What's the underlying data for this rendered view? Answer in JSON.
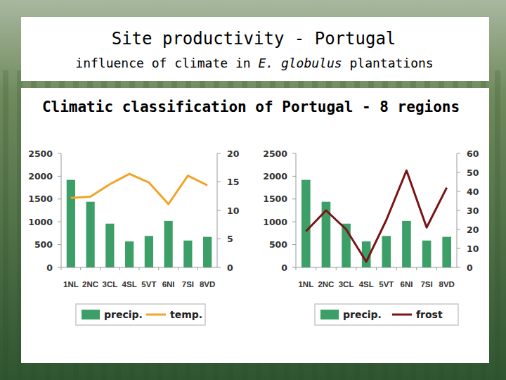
{
  "title": "Site productivity - Portugal",
  "subtitle": "influence of climate in E. globulus plantations",
  "subtitle_italic": "E. globulus",
  "heading": "Climatic classification of Portugal - 8 regions",
  "chart_data": [
    {
      "type": "bar",
      "categories": [
        "1NL",
        "2NC",
        "3CL",
        "4SL",
        "5VT",
        "6NI",
        "7SI",
        "8VD"
      ],
      "series": [
        {
          "name": "precip.",
          "type": "bar",
          "color": "#3c9f68",
          "values": [
            1920,
            1440,
            960,
            570,
            690,
            1020,
            590,
            670
          ]
        },
        {
          "name": "temp.",
          "type": "line",
          "axis": "y2",
          "color": "#f0a428",
          "values": [
            12.2,
            12.4,
            14.6,
            16.4,
            14.9,
            11.1,
            16.1,
            14.4
          ]
        }
      ],
      "ylim": [
        0,
        2500
      ],
      "yticks": [
        0,
        500,
        1000,
        1500,
        2000,
        2500
      ],
      "y2lim": [
        0,
        20
      ],
      "y2ticks": [
        0,
        5,
        10,
        15,
        20
      ],
      "grid": false,
      "legend": "bottom"
    },
    {
      "type": "bar",
      "categories": [
        "1NL",
        "2NC",
        "3CL",
        "4SL",
        "5VT",
        "6NI",
        "7SI",
        "8VD"
      ],
      "series": [
        {
          "name": "precip.",
          "type": "bar",
          "color": "#3c9f68",
          "values": [
            1920,
            1440,
            960,
            570,
            690,
            1020,
            590,
            670
          ]
        },
        {
          "name": "frost",
          "type": "line",
          "axis": "y2",
          "color": "#7a1414",
          "values": [
            19,
            30,
            20,
            3,
            25,
            51,
            21,
            42
          ]
        }
      ],
      "ylim": [
        0,
        2500
      ],
      "yticks": [
        0,
        500,
        1000,
        1500,
        2000,
        2500
      ],
      "y2lim": [
        0,
        60
      ],
      "y2ticks": [
        0,
        10,
        20,
        30,
        40,
        50,
        60
      ],
      "grid": false,
      "legend": "bottom"
    }
  ]
}
